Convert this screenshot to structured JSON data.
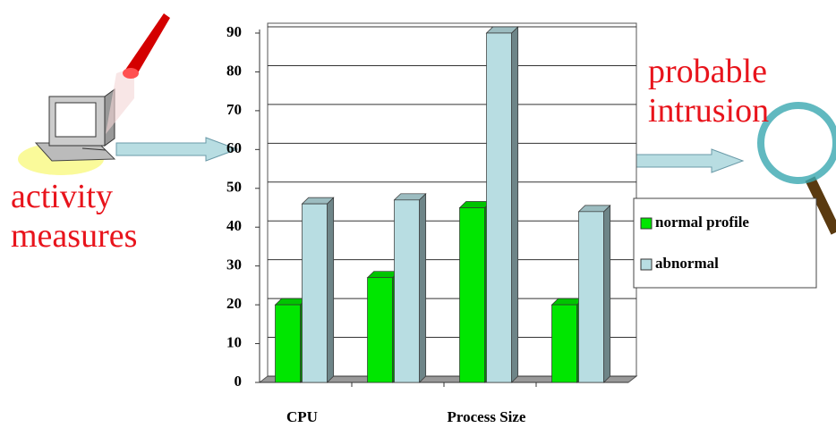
{
  "chart_data": {
    "type": "bar",
    "categories": [
      "CPU",
      null,
      "Process Size",
      null
    ],
    "series": [
      {
        "name": "normal profile",
        "color": "#00e600",
        "values": [
          20,
          27,
          45,
          20
        ]
      },
      {
        "name": "abnormal",
        "color": "#b8dde2",
        "values": [
          46,
          47,
          90,
          44
        ]
      }
    ],
    "ylim": [
      0,
      90
    ],
    "yticks": [
      0,
      10,
      20,
      30,
      40,
      50,
      60,
      70,
      80,
      90
    ],
    "grid": true,
    "legend": "right",
    "annotations": [
      "activity measures",
      "probable intrusion"
    ]
  }
}
